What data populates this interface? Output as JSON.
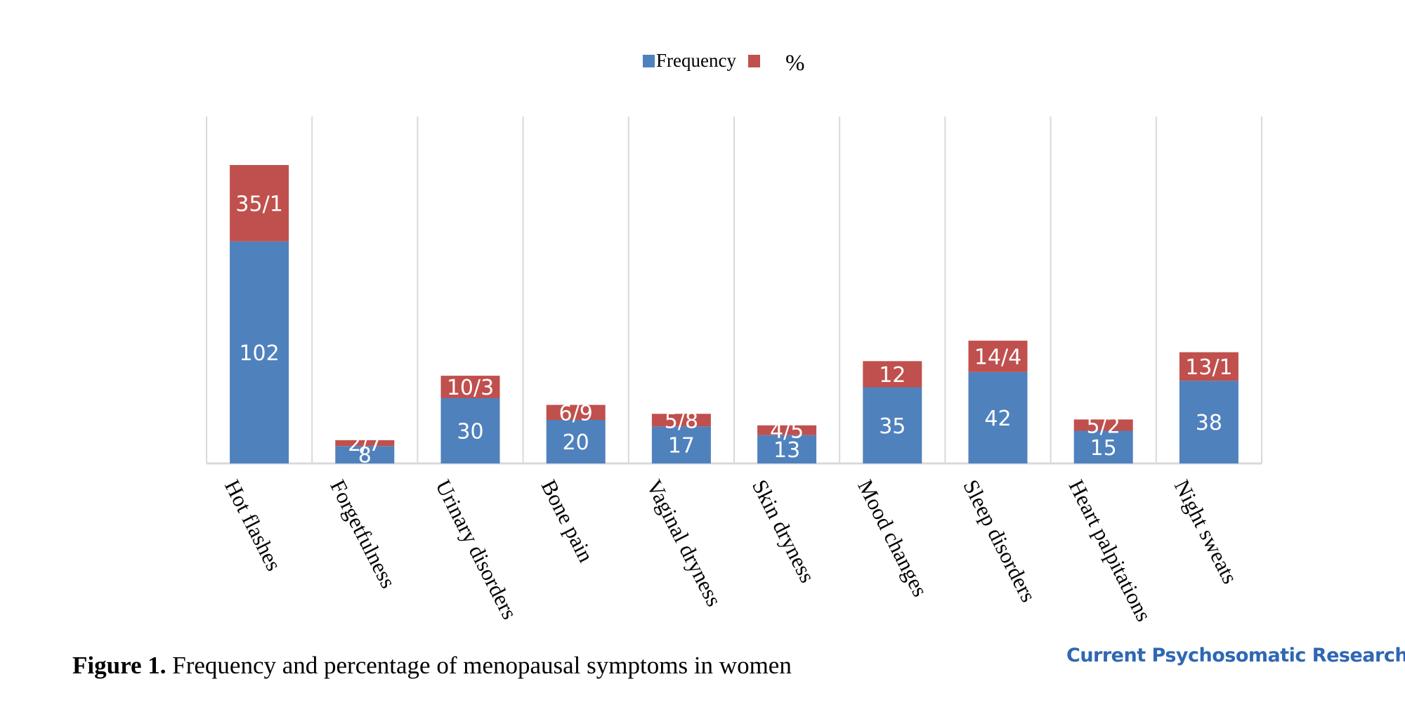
{
  "chart_data": {
    "type": "bar",
    "stacked": true,
    "categories": [
      "Hot flashes",
      "Forgetfulness",
      "Urinary disorders",
      "Bone pain",
      "Vaginal dryness",
      "Skin dryness",
      "Mood changes",
      "Sleep disorders",
      "Heart palpitations",
      "Night sweats"
    ],
    "series": [
      {
        "name": "Frequency",
        "color": "#4f81bd",
        "values": [
          102,
          8,
          30,
          20,
          17,
          13,
          35,
          42,
          15,
          38
        ],
        "labels": [
          "102",
          "8",
          "30",
          "20",
          "17",
          "13",
          "35",
          "42",
          "15",
          "38"
        ]
      },
      {
        "name": "%",
        "color": "#c0504d",
        "values": [
          35.1,
          2.7,
          10.3,
          6.9,
          5.8,
          4.5,
          12,
          14.4,
          5.2,
          13.1
        ],
        "labels": [
          "35/1",
          "2/7",
          "10/3",
          "6/9",
          "5/8",
          "4/5",
          "12",
          "14/4",
          "5/2",
          "13/1"
        ]
      }
    ],
    "ylim": [
      0,
      160
    ],
    "grid": "vertical",
    "legend_position": "top-center",
    "xlabel": "",
    "ylabel": ""
  },
  "caption": {
    "prefix": "Figure 1.",
    "text": " Frequency and percentage of menopausal symptoms in women"
  },
  "journal": "Current Psychosomatic Research"
}
